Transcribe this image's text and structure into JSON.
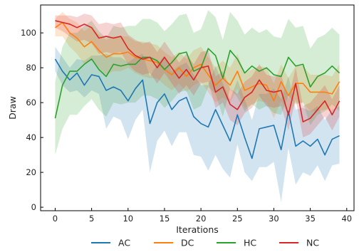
{
  "chart_data": {
    "type": "line",
    "xlabel": "Iterations",
    "ylabel": "Draw",
    "xlim": [
      -2,
      41
    ],
    "ylim": [
      -2,
      116
    ],
    "xticks": [
      0,
      5,
      10,
      15,
      20,
      25,
      30,
      35,
      40
    ],
    "yticks": [
      0,
      20,
      40,
      60,
      80,
      100
    ],
    "grid": false,
    "legend_position": "bottom-center",
    "x": [
      0,
      1,
      2,
      3,
      4,
      5,
      6,
      7,
      8,
      9,
      10,
      11,
      12,
      13,
      14,
      15,
      16,
      17,
      18,
      19,
      20,
      21,
      22,
      23,
      24,
      25,
      26,
      27,
      28,
      29,
      30,
      31,
      32,
      33,
      34,
      35,
      36,
      37,
      38,
      39
    ],
    "series": [
      {
        "name": "AC",
        "color": "#1f77b4",
        "values": [
          85,
          78,
          73,
          77,
          70,
          76,
          75,
          67,
          69,
          67,
          61,
          68,
          73,
          48,
          60,
          65,
          56,
          61,
          63,
          52,
          48,
          46,
          56,
          47,
          38,
          53,
          40,
          28,
          45,
          46,
          47,
          33,
          55,
          35,
          38,
          35,
          39,
          30,
          39,
          41
        ],
        "lower": [
          78,
          70,
          66,
          67,
          63,
          67,
          65,
          45,
          52,
          50,
          39,
          50,
          56,
          20,
          38,
          44,
          35,
          43,
          43,
          30,
          29,
          21,
          30,
          22,
          17,
          36,
          20,
          15,
          23,
          23,
          26,
          3,
          34,
          13,
          20,
          18,
          24,
          15,
          24,
          25
        ],
        "upper": [
          92,
          86,
          80,
          85,
          84,
          87,
          87,
          88,
          86,
          86,
          83,
          86,
          88,
          75,
          82,
          87,
          78,
          81,
          83,
          76,
          70,
          70,
          81,
          71,
          62,
          73,
          62,
          50,
          65,
          65,
          68,
          62,
          75,
          56,
          57,
          55,
          58,
          50,
          56,
          58
        ]
      },
      {
        "name": "DC",
        "color": "#ff7f0e",
        "values": [
          103,
          106,
          100,
          97,
          92,
          95,
          90,
          86,
          88,
          88,
          89,
          86,
          85,
          84,
          83,
          79,
          76,
          80,
          75,
          80,
          82,
          76,
          70,
          74,
          70,
          78,
          67,
          69,
          71,
          70,
          61,
          72,
          64,
          71,
          71,
          66,
          66,
          66,
          65,
          72
        ],
        "lower": [
          98,
          98,
          92,
          88,
          82,
          85,
          80,
          76,
          78,
          78,
          80,
          77,
          75,
          74,
          74,
          70,
          67,
          71,
          66,
          70,
          72,
          66,
          60,
          63,
          60,
          68,
          57,
          59,
          61,
          60,
          51,
          61,
          53,
          60,
          60,
          55,
          55,
          56,
          55,
          62
        ],
        "upper": [
          108,
          112,
          108,
          106,
          101,
          104,
          99,
          96,
          98,
          98,
          98,
          95,
          95,
          94,
          93,
          89,
          86,
          89,
          85,
          90,
          92,
          86,
          80,
          84,
          80,
          88,
          77,
          79,
          81,
          80,
          71,
          82,
          74,
          81,
          81,
          76,
          76,
          76,
          75,
          82
        ]
      },
      {
        "name": "HC",
        "color": "#2ca02c",
        "values": [
          51,
          70,
          78,
          78,
          82,
          85,
          79,
          75,
          82,
          81,
          82,
          82,
          86,
          86,
          84,
          79,
          83,
          88,
          89,
          78,
          80,
          91,
          87,
          74,
          90,
          85,
          77,
          81,
          78,
          80,
          76,
          75,
          86,
          81,
          82,
          69,
          75,
          77,
          81,
          77
        ],
        "lower": [
          30,
          45,
          53,
          53,
          58,
          62,
          56,
          52,
          60,
          59,
          60,
          60,
          64,
          64,
          62,
          57,
          61,
          66,
          67,
          56,
          58,
          69,
          65,
          52,
          68,
          63,
          55,
          59,
          56,
          58,
          54,
          53,
          64,
          59,
          60,
          47,
          53,
          55,
          59,
          55
        ],
        "upper": [
          72,
          92,
          100,
          100,
          104,
          107,
          101,
          97,
          104,
          103,
          104,
          104,
          108,
          108,
          106,
          101,
          105,
          110,
          111,
          100,
          102,
          113,
          109,
          96,
          112,
          107,
          99,
          103,
          100,
          102,
          98,
          97,
          108,
          103,
          104,
          91,
          97,
          99,
          103,
          99
        ]
      },
      {
        "name": "NC",
        "color": "#d62728",
        "values": [
          107,
          106,
          105,
          103,
          105,
          103,
          97,
          98,
          97,
          98,
          91,
          87,
          85,
          86,
          80,
          86,
          80,
          74,
          79,
          73,
          80,
          81,
          66,
          69,
          59,
          56,
          63,
          66,
          73,
          67,
          66,
          67,
          53,
          71,
          49,
          51,
          56,
          61,
          53,
          61
        ],
        "lower": [
          103,
          101,
          98,
          95,
          96,
          94,
          88,
          89,
          88,
          89,
          82,
          78,
          76,
          77,
          71,
          77,
          71,
          65,
          70,
          64,
          71,
          72,
          57,
          60,
          50,
          47,
          54,
          57,
          64,
          58,
          57,
          58,
          44,
          62,
          40,
          42,
          47,
          52,
          44,
          52
        ],
        "upper": [
          110,
          110,
          110,
          109,
          111,
          110,
          105,
          106,
          105,
          106,
          99,
          96,
          94,
          95,
          89,
          95,
          89,
          83,
          88,
          82,
          89,
          90,
          75,
          78,
          68,
          65,
          72,
          75,
          82,
          76,
          75,
          76,
          62,
          80,
          58,
          60,
          65,
          70,
          62,
          70
        ]
      }
    ]
  }
}
